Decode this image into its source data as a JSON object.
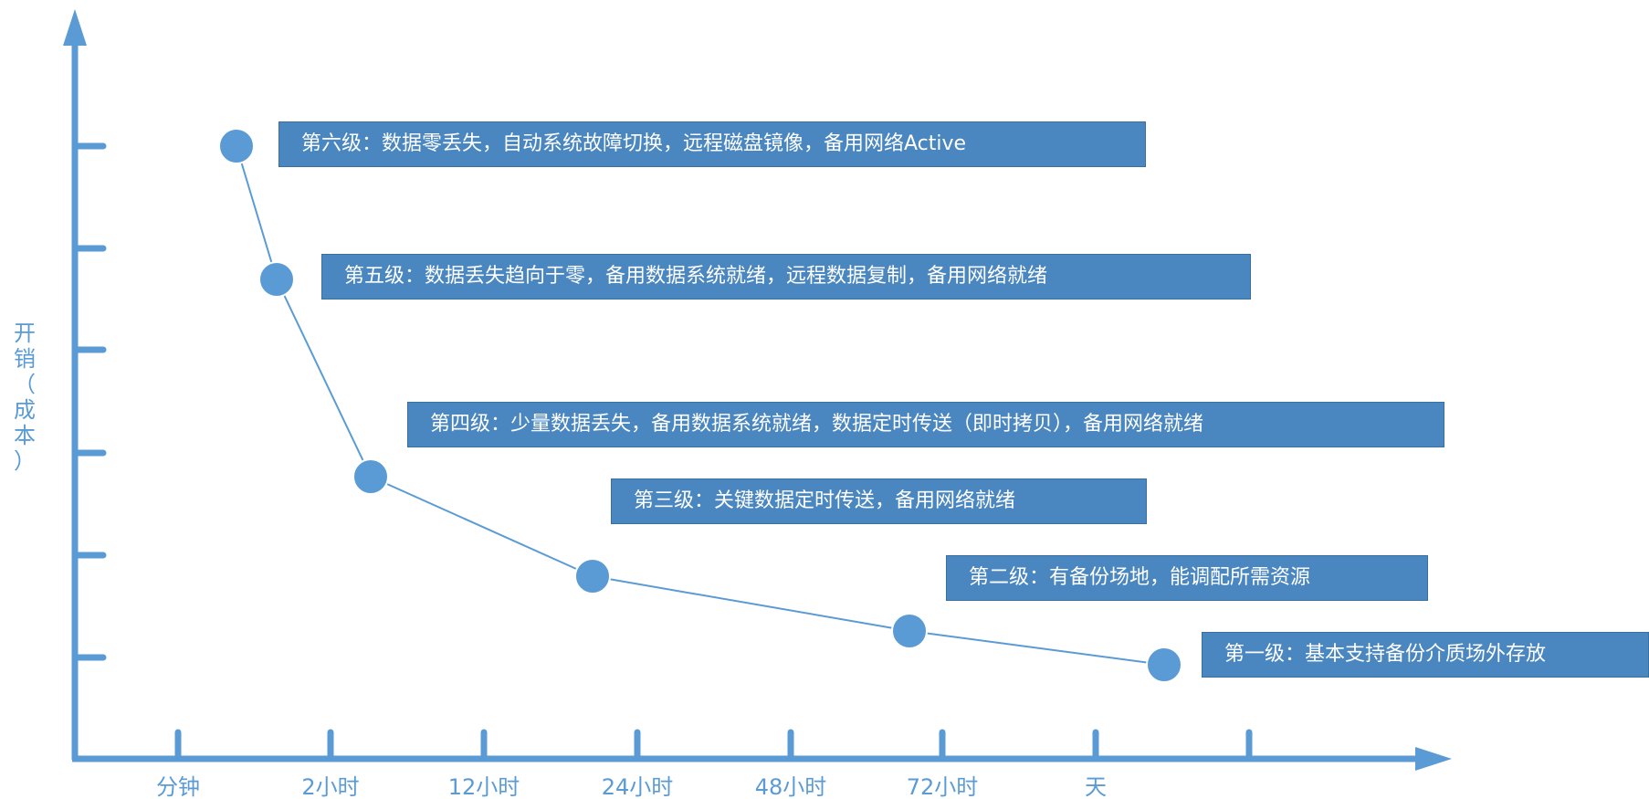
{
  "colors": {
    "axis": "#5b9bd5",
    "point": "#5b9bd5",
    "point_stroke": "#ffffff",
    "line": "#5b9bd5",
    "box_fill": "#4a86c0",
    "label_text": "#5b9bd5",
    "box_text": "#ffffff"
  },
  "y_axis_label": "开销（成本）",
  "x_axis": {
    "ticks": [
      "分钟",
      "2小时",
      "12小时",
      "24小时",
      "48小时",
      "72小时",
      "天",
      ""
    ]
  },
  "levels": [
    {
      "text": "第六级：数据零丢失，自动系统故障切换，远程磁盘镜像，备用网络Active"
    },
    {
      "text": "第五级：数据丢失趋向于零，备用数据系统就绪，远程数据复制，备用网络就绪"
    },
    {
      "text": "第四级：少量数据丢失，备用数据系统就绪，数据定时传送（即时拷贝），备用网络就绪"
    },
    {
      "text": "第三级：关键数据定时传送，备用网络就绪"
    },
    {
      "text": "第二级：有备份场地，能调配所需资源"
    },
    {
      "text": "第一级：基本支持备份介质场外存放"
    }
  ]
}
